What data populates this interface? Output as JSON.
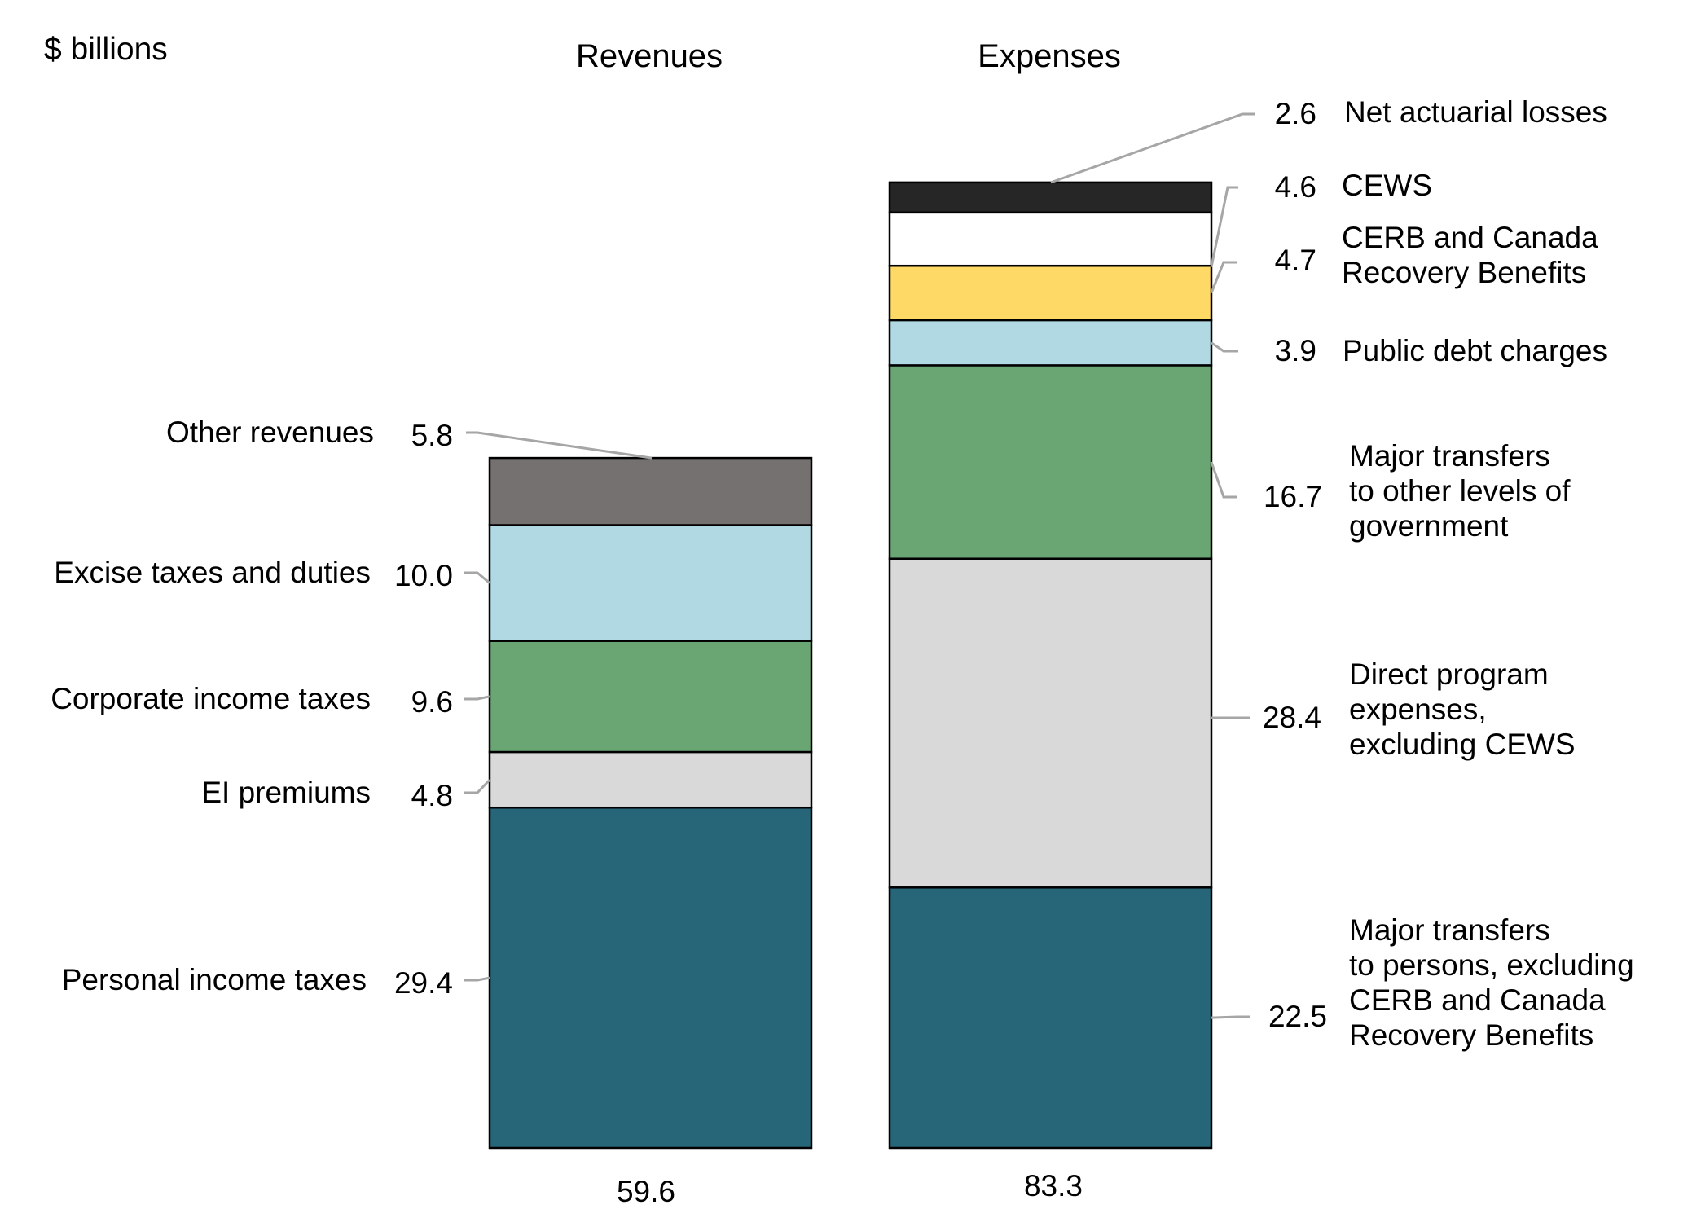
{
  "chart_data": {
    "type": "bar",
    "stacked": true,
    "unit_label": "$ billions",
    "categories": [
      "Revenues",
      "Expenses"
    ],
    "totals": [
      "59.6",
      "83.3"
    ],
    "stacks": [
      {
        "category": "Revenues",
        "segments": [
          {
            "name": "Personal income taxes",
            "value": 29.4,
            "display": "29.4",
            "color": "#276678"
          },
          {
            "name": "EI premiums",
            "value": 4.8,
            "display": "4.8",
            "color": "#d9d9d9"
          },
          {
            "name": "Corporate income taxes",
            "value": 9.6,
            "display": "9.6",
            "color": "#6aa574"
          },
          {
            "name": "Excise taxes and duties",
            "value": 10.0,
            "display": "10.0",
            "color": "#b0d9e4"
          },
          {
            "name": "Other revenues",
            "value": 5.8,
            "display": "5.8",
            "color": "#767171"
          }
        ]
      },
      {
        "category": "Expenses",
        "segments": [
          {
            "name": "Major transfers to persons, excluding CERB and Canada Recovery Benefits",
            "lines": [
              "Major transfers",
              "to persons, excluding",
              "CERB and Canada",
              "Recovery Benefits"
            ],
            "value": 22.5,
            "display": "22.5",
            "color": "#276678"
          },
          {
            "name": "Direct program expenses, excluding CEWS",
            "lines": [
              "Direct program",
              "expenses,",
              "excluding CEWS"
            ],
            "value": 28.4,
            "display": "28.4",
            "color": "#d9d9d9"
          },
          {
            "name": "Major transfers to other levels of government",
            "lines": [
              "Major transfers",
              "to other levels of",
              "government"
            ],
            "value": 16.7,
            "display": "16.7",
            "color": "#6aa574"
          },
          {
            "name": "Public debt charges",
            "lines": [
              "Public debt charges"
            ],
            "value": 3.9,
            "display": "3.9",
            "color": "#b0d9e4"
          },
          {
            "name": "CERB and Canada Recovery Benefits",
            "lines": [
              "CERB and Canada",
              "Recovery Benefits"
            ],
            "value": 4.7,
            "display": "4.7",
            "color": "#ffd966"
          },
          {
            "name": "CEWS",
            "lines": [
              "CEWS"
            ],
            "value": 4.6,
            "display": "4.6",
            "color": "#ffffff"
          },
          {
            "name": "Net actuarial losses",
            "lines": [
              "Net actuarial losses"
            ],
            "value": 2.6,
            "display": "2.6",
            "color": "#262626"
          }
        ]
      }
    ],
    "legend": "none",
    "grid": false
  }
}
